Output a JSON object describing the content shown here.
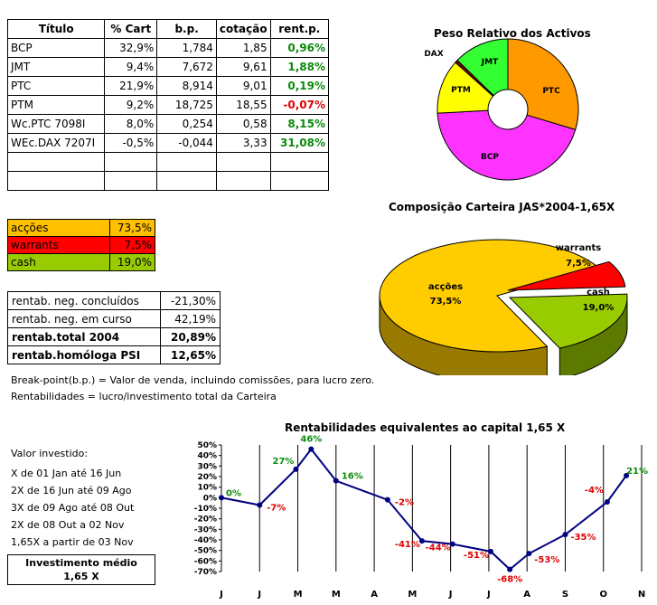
{
  "holdings": {
    "headers": [
      "Título",
      "% Cart",
      "b.p.",
      "cotação",
      "rent.p."
    ],
    "rows": [
      {
        "titulo": "BCP",
        "cart": "32,9%",
        "bp": "1,784",
        "cot": "1,85",
        "rent": "0,96%",
        "sign": "pos"
      },
      {
        "titulo": "JMT",
        "cart": "9,4%",
        "bp": "7,672",
        "cot": "9,61",
        "rent": "1,88%",
        "sign": "pos"
      },
      {
        "titulo": "PTC",
        "cart": "21,9%",
        "bp": "8,914",
        "cot": "9,01",
        "rent": "0,19%",
        "sign": "pos"
      },
      {
        "titulo": "PTM",
        "cart": "9,2%",
        "bp": "18,725",
        "cot": "18,55",
        "rent": "-0,07%",
        "sign": "neg"
      },
      {
        "titulo": "Wc.PTC 7098I",
        "cart": "8,0%",
        "bp": "0,254",
        "cot": "0,58",
        "rent": "8,15%",
        "sign": "pos"
      },
      {
        "titulo": "WEc.DAX 7207I",
        "cart": "-0,5%",
        "bp": "-0,044",
        "cot": "3,33",
        "rent": "31,08%",
        "sign": "pos"
      },
      {
        "titulo": "",
        "cart": "",
        "bp": "",
        "cot": "",
        "rent": "",
        "sign": ""
      },
      {
        "titulo": "",
        "cart": "",
        "bp": "",
        "cot": "",
        "rent": "",
        "sign": ""
      }
    ]
  },
  "allocation": [
    {
      "label": "acções",
      "value": "73,5%",
      "color": "#ffc000"
    },
    {
      "label": "warrants",
      "value": "7,5%",
      "color": "#ff0000"
    },
    {
      "label": "cash",
      "value": "19,0%",
      "color": "#99cc00"
    }
  ],
  "returns": [
    {
      "label": "rentab. neg. concluídos",
      "value": "-21,30%",
      "bold": false
    },
    {
      "label": "rentab. neg. em curso",
      "value": "42,19%",
      "bold": false
    },
    {
      "label": "rentab.total 2004",
      "value": "20,89%",
      "bold": true
    },
    {
      "label": "rentab.homóloga PSI",
      "value": "12,65%",
      "bold": true
    }
  ],
  "notes": {
    "breakpoint": "Break-point(b.p.) = Valor de venda, incluindo comissões, para lucro zero.",
    "rentabilidades": "Rentabilidades = lucro/investimento total da Carteira"
  },
  "investment": {
    "title": "Valor investido:",
    "lines": [
      "X de 01 Jan até 16 Jun",
      "2X de 16 Jun até 09 Ago",
      "3X de 09 Ago até 08 Out",
      "2X de 08 Out a 02 Nov",
      "1,65X a partir de 03 Nov"
    ],
    "box_title": "Investimento médio",
    "box_value": "1,65 X"
  },
  "chart_data": [
    {
      "type": "pie",
      "title": "Peso Relativo dos Activos",
      "slices": [
        {
          "label": "PTC",
          "value": 21.9,
          "color": "#ff9900"
        },
        {
          "label": "BCP",
          "value": 32.9,
          "color": "#ff33ff"
        },
        {
          "label": "PTM",
          "value": 9.2,
          "color": "#ffff00"
        },
        {
          "label": "DAX",
          "value": 0.5,
          "color": "#800000"
        },
        {
          "label": "JMT",
          "value": 9.4,
          "color": "#33ff33"
        }
      ]
    },
    {
      "type": "pie",
      "title": "Composição Carteira JAS*2004-1,65X",
      "slices": [
        {
          "label": "acções",
          "value_label": "73,5%",
          "value": 73.5,
          "color": "#ffcc00"
        },
        {
          "label": "warrants",
          "value_label": "7,5%",
          "value": 7.5,
          "color": "#ff0000"
        },
        {
          "label": "cash",
          "value_label": "19,0%",
          "value": 19.0,
          "color": "#99cc00"
        }
      ]
    },
    {
      "type": "line",
      "title": "Rentabilidades equivalentes ao capital 1,65 X",
      "categories": [
        "J",
        "J",
        "M",
        "M",
        "A",
        "M",
        "J",
        "J",
        "A",
        "S",
        "O",
        "N"
      ],
      "yticks": [
        "50%",
        "40%",
        "30%",
        "20%",
        "10%",
        "0%",
        "-10%",
        "-20%",
        "-30%",
        "-40%",
        "-50%",
        "-60%",
        "-70%"
      ],
      "ylim": [
        -70,
        50
      ],
      "points": [
        {
          "x": 0.0,
          "y": 0,
          "label": "0%"
        },
        {
          "x": 1.0,
          "y": -7,
          "label": "-7%"
        },
        {
          "x": 1.95,
          "y": 27,
          "label": "27%"
        },
        {
          "x": 2.35,
          "y": 46,
          "label": "46%"
        },
        {
          "x": 3.0,
          "y": 16,
          "label": "16%"
        },
        {
          "x": 4.35,
          "y": -2,
          "label": "-2%"
        },
        {
          "x": 5.25,
          "y": -41,
          "label": "-41%"
        },
        {
          "x": 6.05,
          "y": -44,
          "label": "-44%"
        },
        {
          "x": 7.05,
          "y": -51,
          "label": "-51%"
        },
        {
          "x": 7.55,
          "y": -68,
          "label": "-68%"
        },
        {
          "x": 8.05,
          "y": -53,
          "label": "-53%"
        },
        {
          "x": 9.0,
          "y": -35,
          "label": "-35%"
        },
        {
          "x": 10.1,
          "y": -4,
          "label": "-4%"
        },
        {
          "x": 10.6,
          "y": 21,
          "label": "21%"
        }
      ],
      "line_color": "#000080",
      "pos_color": "#0b8a0b",
      "neg_color": "#e00000"
    }
  ]
}
